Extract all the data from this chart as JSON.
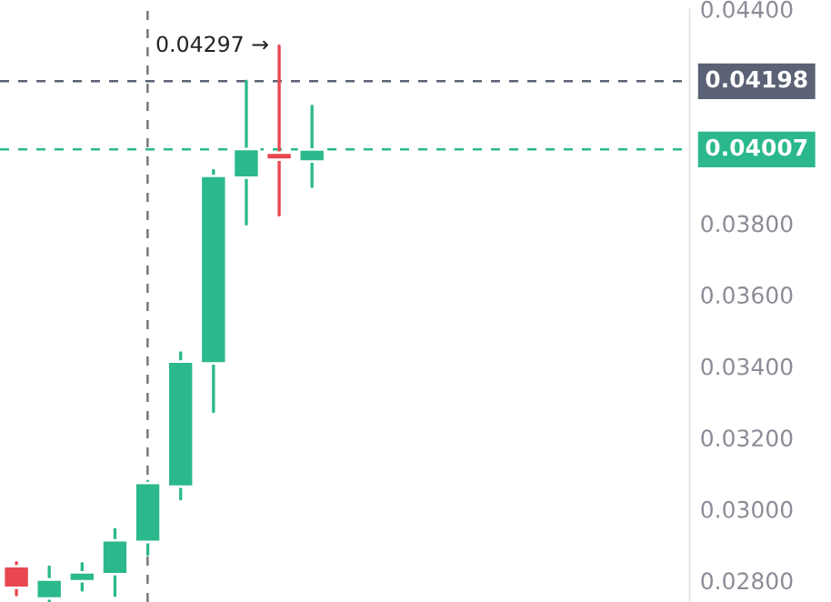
{
  "chart_data": {
    "type": "candlestick",
    "categories": [
      null,
      null,
      null,
      null,
      null,
      null,
      null,
      null,
      null,
      null,
      null,
      null,
      null,
      null,
      null,
      null,
      null,
      null,
      null,
      null,
      null
    ],
    "ohlc": [
      [
        0.0284,
        0.0285,
        0.0276,
        0.0278
      ],
      [
        0.0275,
        0.02838,
        0.0274,
        0.02803
      ],
      [
        0.02798,
        0.02848,
        0.02773,
        0.02823
      ],
      [
        0.02818,
        0.02943,
        0.02758,
        0.02913
      ],
      [
        0.02908,
        0.03078,
        0.02873,
        0.03073
      ],
      [
        0.03063,
        0.03438,
        0.03028,
        0.03413
      ],
      [
        0.03408,
        0.03948,
        0.03273,
        0.03933
      ],
      [
        0.03928,
        0.04198,
        0.03798,
        0.04008
      ],
      [
        0.03998,
        0.04297,
        0.03823,
        0.03978
      ],
      [
        0.03973,
        0.04128,
        0.03903,
        0.04007
      ],
      null,
      null,
      null,
      null,
      null,
      null,
      null,
      null,
      null,
      null,
      null
    ],
    "colors": [
      "#e8474f",
      "#2bb88c",
      "#2bb88c",
      "#2bb88c",
      "#2bb88c",
      "#2bb88c",
      "#2bb88c",
      "#2bb88c",
      "#e8474f",
      "#2bb88c",
      null,
      null,
      null,
      null,
      null,
      null,
      null,
      null,
      null,
      null,
      null
    ],
    "ylim": [
      0.0274,
      0.044
    ],
    "yticks": [
      {
        "value": 0.028,
        "label": "0.02800"
      },
      {
        "value": 0.03,
        "label": "0.03000"
      },
      {
        "value": 0.032,
        "label": "0.03200"
      },
      {
        "value": 0.034,
        "label": "0.03400"
      },
      {
        "value": 0.036,
        "label": "0.03600"
      },
      {
        "value": 0.038,
        "label": "0.03800"
      },
      {
        "value": 0.044,
        "label": "0.04400"
      }
    ],
    "ref_lines": [
      {
        "axis": "y",
        "value": 0.04198,
        "label": "0.04198",
        "color": "#5b6275",
        "line_style": "dashed"
      },
      {
        "axis": "y",
        "value": 0.04007,
        "label": "0.04007",
        "color": "#2bb88c",
        "line_style": "dashed"
      }
    ],
    "annotations": [
      "0.04297 →"
    ],
    "grid": false
  }
}
